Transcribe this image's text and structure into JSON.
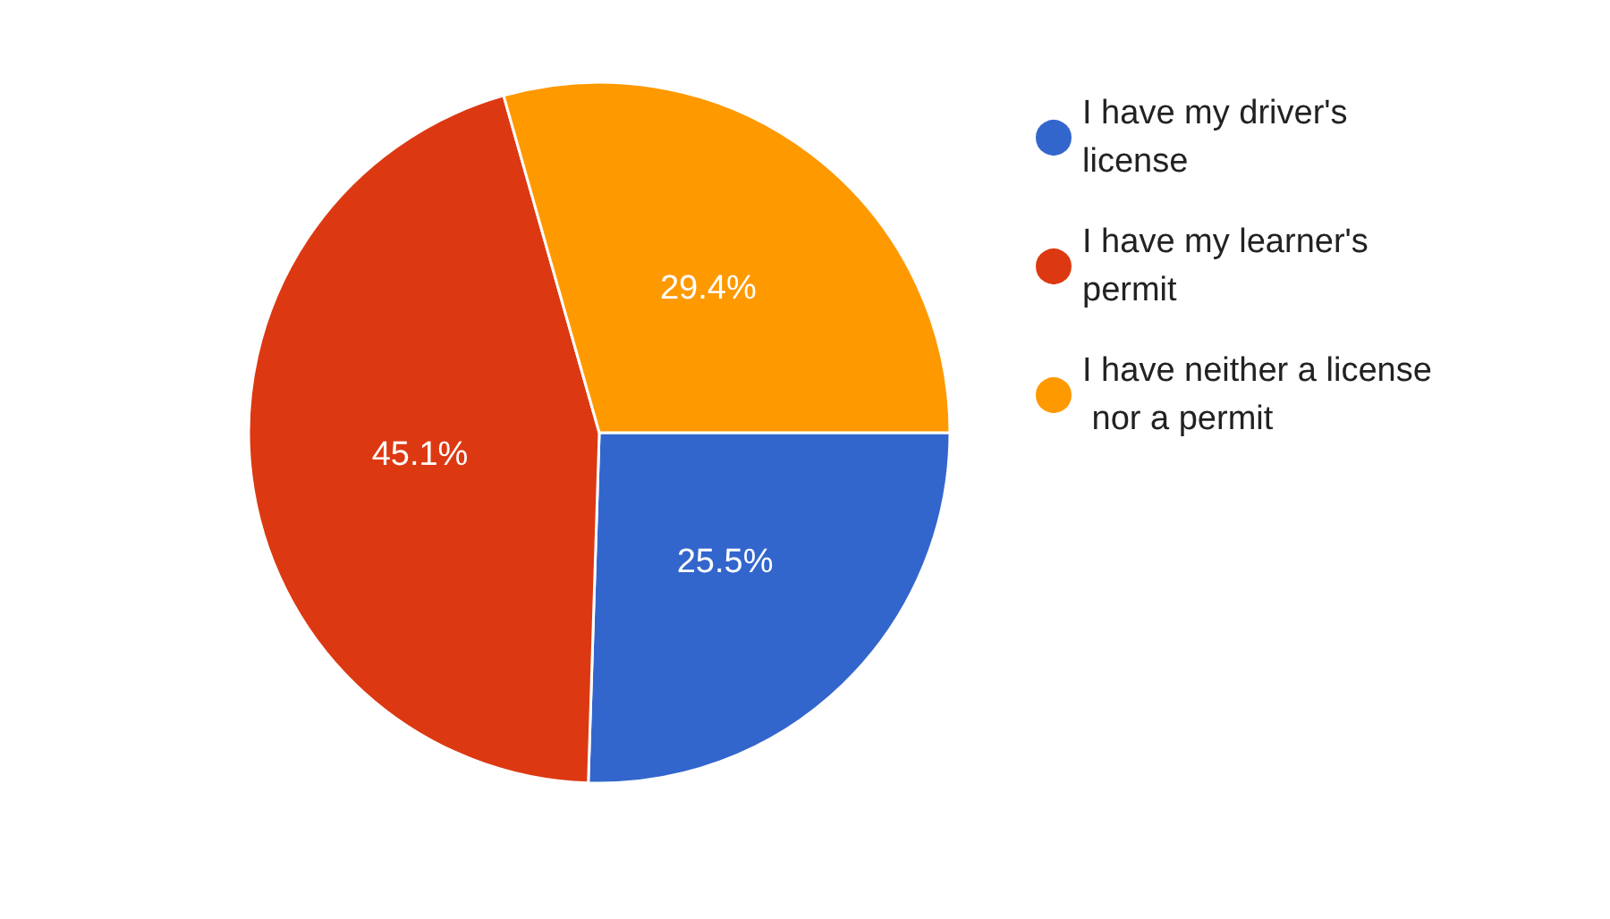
{
  "chart_data": {
    "type": "pie",
    "categories": [
      "I have my driver's license",
      "I have my learner's permit",
      "I have neither a license nor a permit"
    ],
    "values": [
      25.5,
      45.1,
      29.4
    ],
    "colors": [
      "#3366cc",
      "#dc3912",
      "#ff9900"
    ],
    "value_labels": [
      "25.5%",
      "45.1%",
      "29.4%"
    ],
    "legend": "top right"
  }
}
